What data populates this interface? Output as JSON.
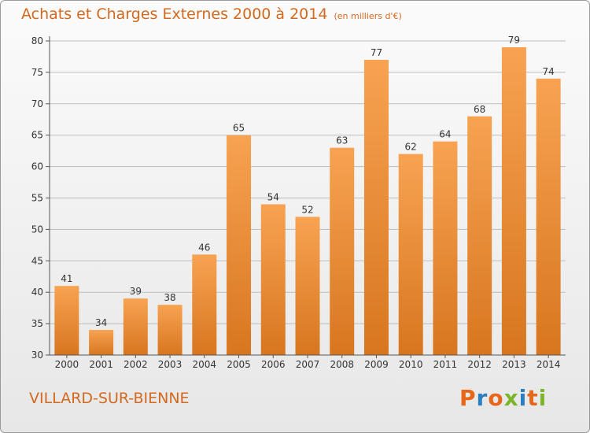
{
  "header": {
    "title": "Achats et Charges Externes 2000 à 2014",
    "subtitle": "(en milliers d'€)"
  },
  "footer": {
    "commune": "VILLARD-SUR-BIENNE",
    "logo_text": "Proxiti",
    "logo_colors": [
      "#e8661a",
      "#2a7fc0",
      "#e8661a",
      "#7cb52b",
      "#2a7fc0",
      "#e8661a",
      "#7cb52b"
    ]
  },
  "colors": {
    "bar_light": "#f7a352",
    "bar_dark": "#d8761f",
    "grid": "#bdbdbd",
    "axis_text": "#333333",
    "title": "#d2691e"
  },
  "chart_data": {
    "type": "bar",
    "categories": [
      "2000",
      "2001",
      "2002",
      "2003",
      "2004",
      "2005",
      "2006",
      "2007",
      "2008",
      "2009",
      "2010",
      "2011",
      "2012",
      "2013",
      "2014"
    ],
    "values": [
      41,
      34,
      39,
      38,
      46,
      65,
      54,
      52,
      63,
      77,
      62,
      64,
      68,
      79,
      74
    ],
    "ylim": [
      30,
      80
    ],
    "yticks": [
      30,
      35,
      40,
      45,
      50,
      55,
      60,
      65,
      70,
      75,
      80
    ],
    "grid": true,
    "data_labels": true
  }
}
